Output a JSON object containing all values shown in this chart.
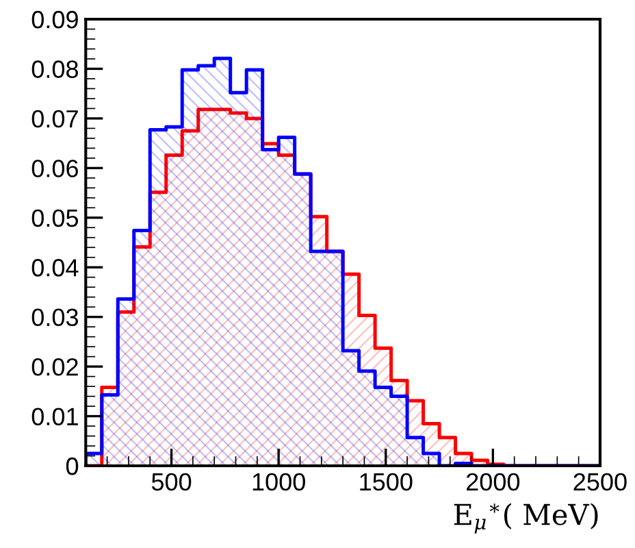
{
  "chart_data": {
    "type": "histogram",
    "xlabel": "E$_{μ}$$^{∗}$( MeV)",
    "bins": [
      100,
      175,
      250,
      325,
      400,
      475,
      550,
      625,
      700,
      775,
      850,
      925,
      1000,
      1075,
      1150,
      1225,
      1300,
      1375,
      1450,
      1525,
      1600,
      1675,
      1750,
      1825,
      1900,
      1975,
      2050,
      2125,
      2200,
      2275,
      2350,
      2425,
      2500
    ],
    "series": [
      {
        "color": "#ff0000",
        "values": [
          0,
          0.0158,
          0.031,
          0.0441,
          0.0551,
          0.0626,
          0.0675,
          0.0718,
          0.0718,
          0.0711,
          0.07,
          0.0649,
          0.0626,
          0.0588,
          0.0502,
          0.0432,
          0.0386,
          0.0303,
          0.0237,
          0.0172,
          0.0131,
          0.0085,
          0.0057,
          0.0025,
          0.0011,
          0.0003,
          0,
          0,
          0,
          0,
          0,
          0
        ]
      },
      {
        "color": "#0000ff",
        "values": [
          0.0025,
          0.0143,
          0.0336,
          0.0474,
          0.0677,
          0.0683,
          0.0798,
          0.0806,
          0.0821,
          0.0752,
          0.0798,
          0.0637,
          0.0662,
          0.0588,
          0.0432,
          0.0432,
          0.0232,
          0.0191,
          0.0158,
          0.014,
          0.0057,
          0.0025,
          0,
          0.0005,
          0,
          0,
          0,
          0,
          0,
          0,
          0,
          0
        ]
      }
    ],
    "xlim": [
      100,
      2500
    ],
    "xticks": [
      500,
      1000,
      1500,
      2000,
      2500
    ],
    "ylim": [
      0,
      0.09
    ],
    "yticks": [
      0,
      0.01,
      0.02,
      0.03,
      0.04,
      0.05,
      0.06,
      0.07,
      0.08,
      0.09
    ]
  }
}
